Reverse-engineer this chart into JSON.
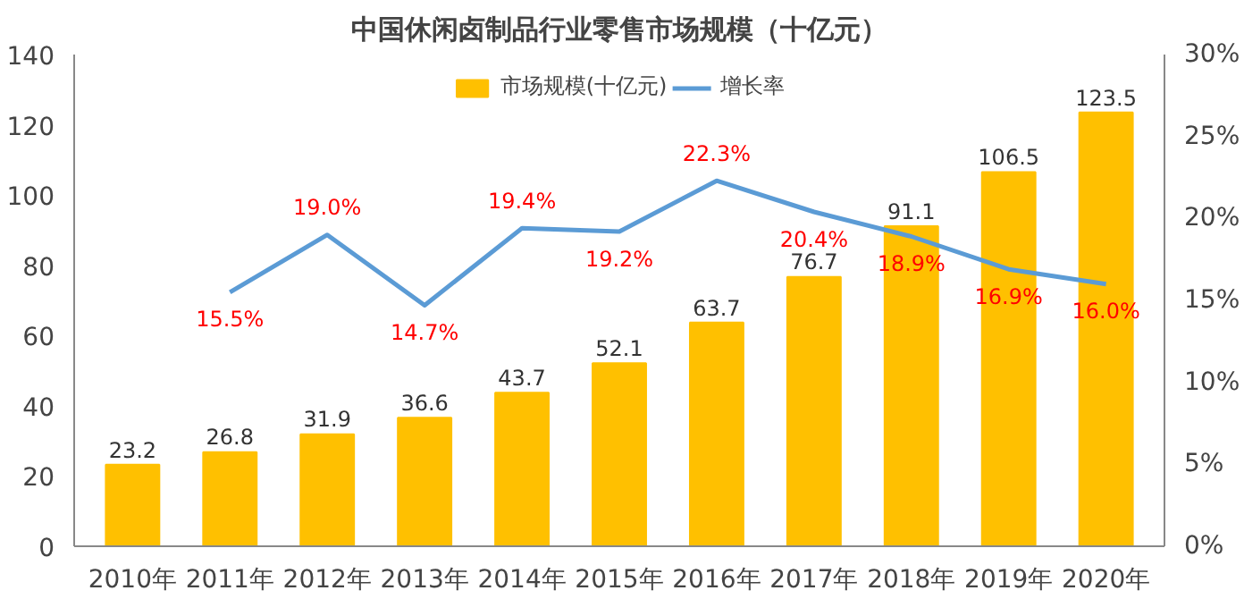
{
  "chart_data": {
    "type": "bar",
    "title": "中国休闲卤制品行业零售市场规模（十亿元）",
    "categories": [
      "2010年",
      "2011年",
      "2012年",
      "2013年",
      "2014年",
      "2015年",
      "2016年",
      "2017年",
      "2018年",
      "2019年",
      "2020年"
    ],
    "series": [
      {
        "name": "市场规模(十亿元)",
        "color": "#ffc000",
        "values": [
          23.2,
          26.8,
          31.9,
          36.6,
          43.7,
          52.1,
          63.7,
          76.7,
          91.1,
          106.5,
          123.5
        ],
        "value_labels": [
          "23.2",
          "26.8",
          "31.9",
          "36.6",
          "43.7",
          "52.1",
          "63.7",
          "76.7",
          "91.1",
          "106.5",
          "123.5"
        ]
      },
      {
        "name": "增长率",
        "type": "line",
        "axis": "y2",
        "color": "#5b9bd5",
        "values": [
          null,
          15.5,
          19.0,
          14.7,
          19.4,
          19.2,
          22.3,
          20.4,
          18.9,
          16.9,
          16.0
        ],
        "value_labels": [
          null,
          "15.5%",
          "19.0%",
          "14.7%",
          "19.4%",
          "19.2%",
          "22.3%",
          "20.4%",
          "18.9%",
          "16.9%",
          "16.0%"
        ]
      }
    ],
    "ylim": [
      0,
      140
    ],
    "yticks": [
      0,
      20,
      40,
      60,
      80,
      100,
      120,
      140
    ],
    "y2lim": [
      0,
      30
    ],
    "y2ticks": [
      {
        "value": 0,
        "label": "0%"
      },
      {
        "value": 5,
        "label": "5%"
      },
      {
        "value": 10,
        "label": "10%"
      },
      {
        "value": 15,
        "label": "15%"
      },
      {
        "value": 20,
        "label": "20%"
      },
      {
        "value": 25,
        "label": "25%"
      },
      {
        "value": 30,
        "label": "30%"
      }
    ],
    "legend": "top"
  }
}
